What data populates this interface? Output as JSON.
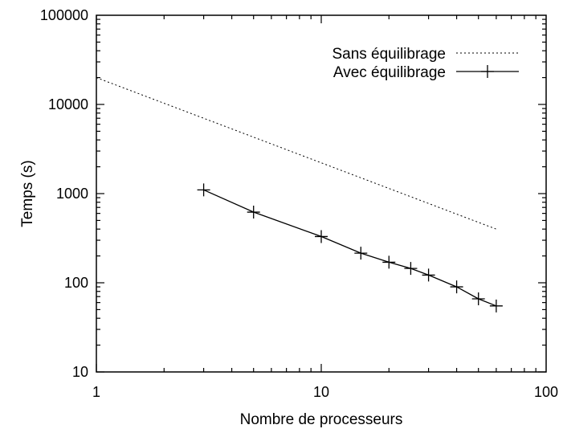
{
  "chart_data": {
    "type": "line",
    "title": "",
    "xlabel": "Nombre de processeurs",
    "ylabel": "Temps (s)",
    "x_scale": "log",
    "y_scale": "log",
    "xlim": [
      1,
      100
    ],
    "ylim": [
      10,
      100000
    ],
    "grid": false,
    "legend_position": "top-right",
    "x_tick_labels": [
      "1",
      "10",
      "100"
    ],
    "y_tick_labels": [
      "10",
      "100",
      "1000",
      "10000",
      "100000"
    ],
    "series": [
      {
        "name": "Sans équilibrage",
        "style": "dotted",
        "markers": false,
        "x": [
          1,
          60
        ],
        "y": [
          20000,
          400
        ]
      },
      {
        "name": "Avec équilibrage",
        "style": "solid",
        "markers": true,
        "marker": "plus",
        "x": [
          3,
          5,
          10,
          15,
          20,
          25,
          30,
          40,
          50,
          60
        ],
        "y": [
          1100,
          620,
          330,
          215,
          170,
          145,
          122,
          90,
          66,
          55
        ]
      }
    ]
  },
  "colors": {
    "line": "#000000",
    "background": "#ffffff"
  }
}
